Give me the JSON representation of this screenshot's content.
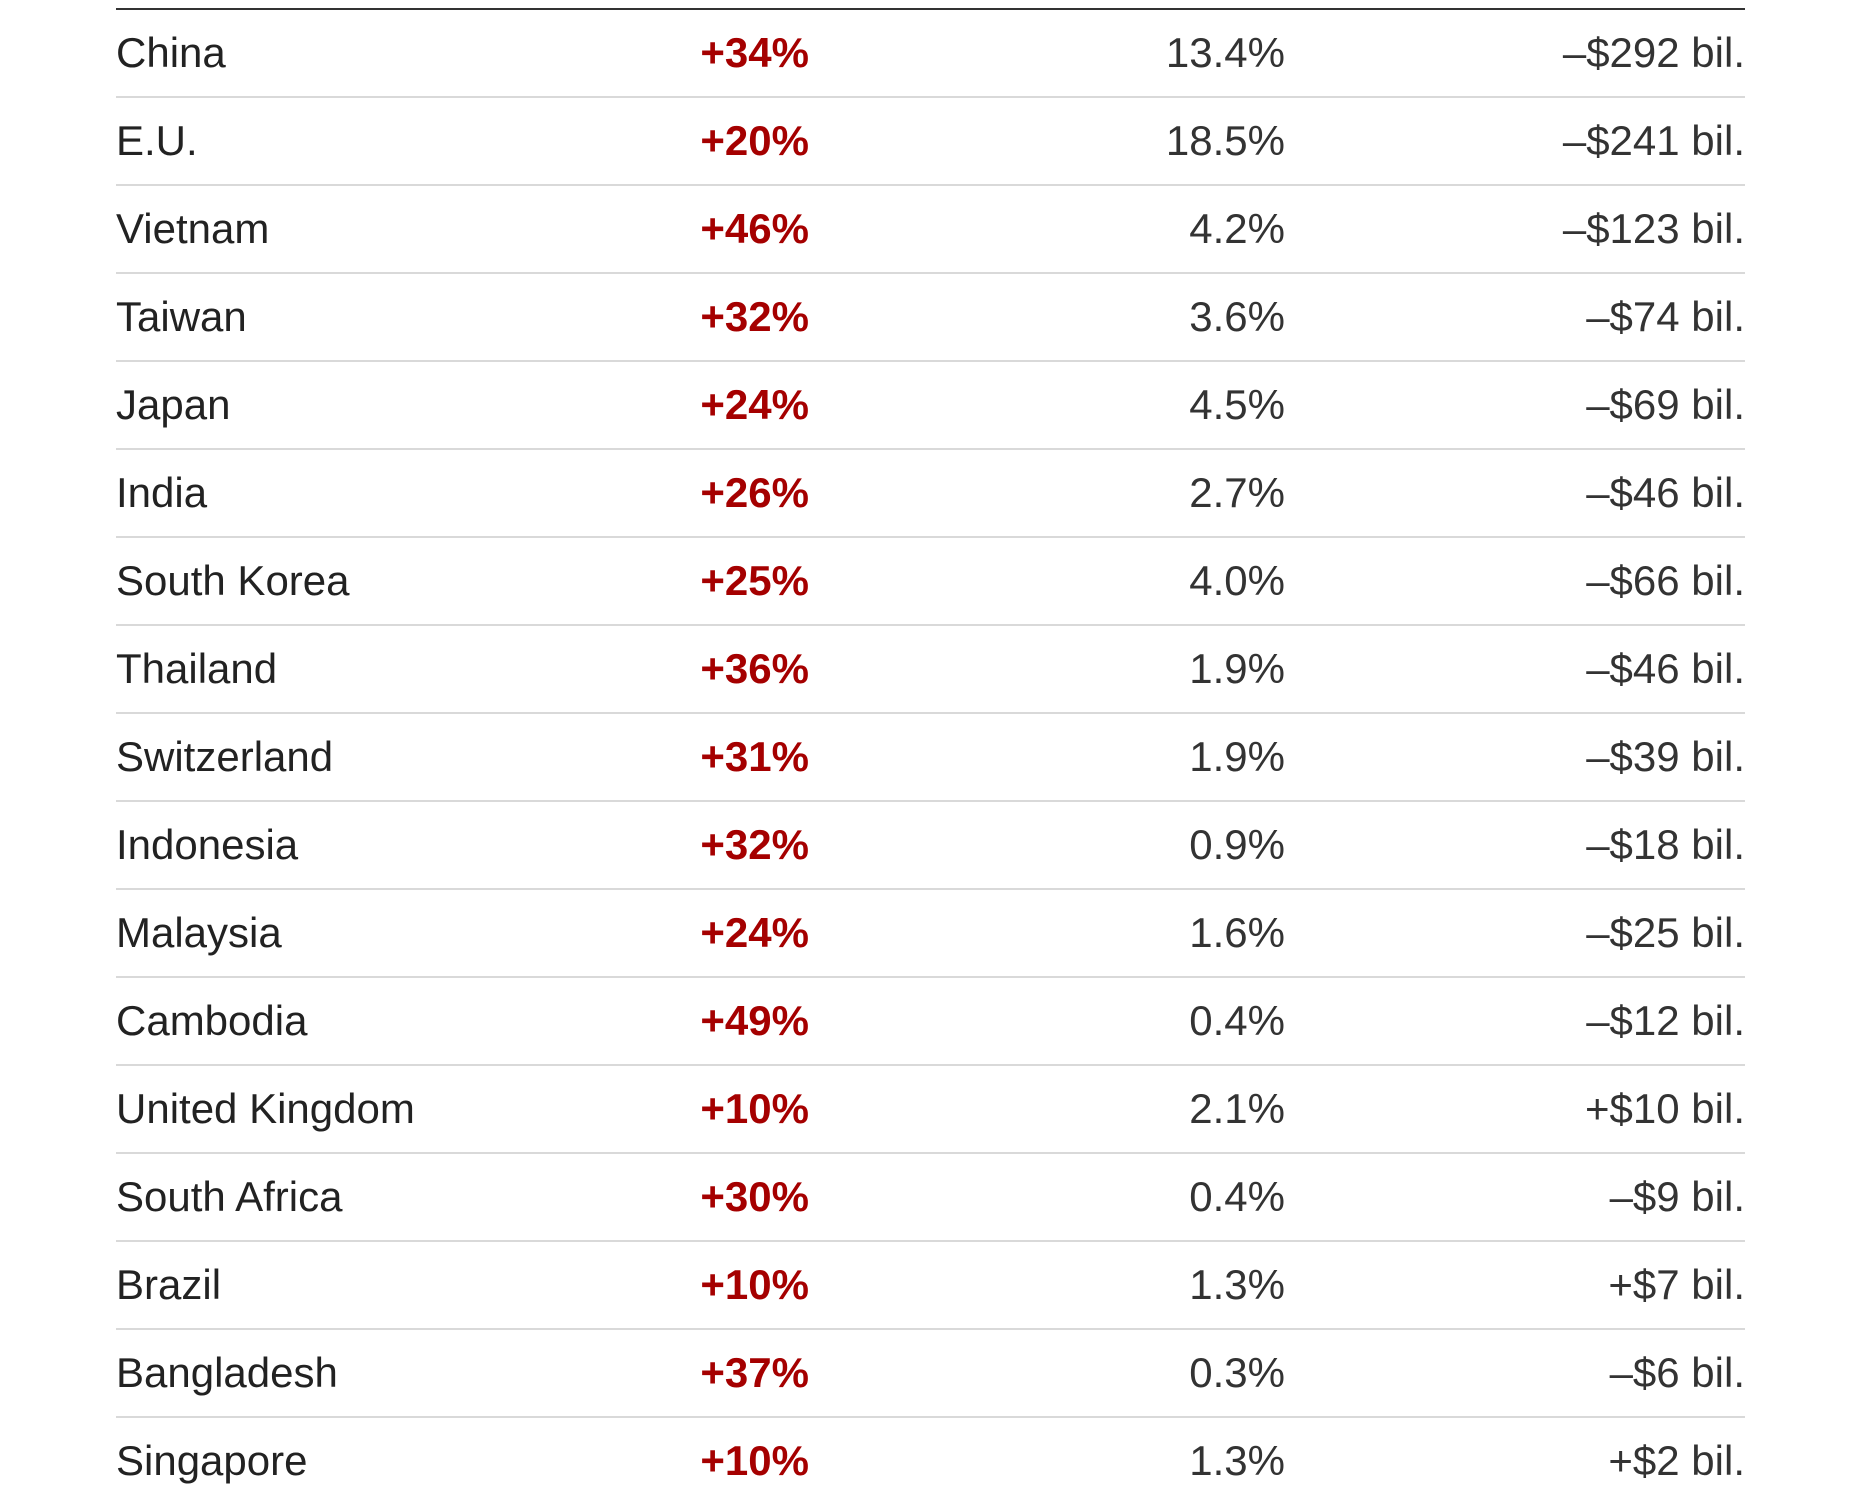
{
  "chart_data": {
    "type": "table",
    "rows": [
      {
        "country": "China",
        "tariff": "+34%",
        "share": "13.4%",
        "balance": "–$292 bil."
      },
      {
        "country": "E.U.",
        "tariff": "+20%",
        "share": "18.5%",
        "balance": "–$241 bil."
      },
      {
        "country": "Vietnam",
        "tariff": "+46%",
        "share": "4.2%",
        "balance": "–$123 bil."
      },
      {
        "country": "Taiwan",
        "tariff": "+32%",
        "share": "3.6%",
        "balance": "–$74 bil."
      },
      {
        "country": "Japan",
        "tariff": "+24%",
        "share": "4.5%",
        "balance": "–$69 bil."
      },
      {
        "country": "India",
        "tariff": "+26%",
        "share": "2.7%",
        "balance": "–$46 bil."
      },
      {
        "country": "South Korea",
        "tariff": "+25%",
        "share": "4.0%",
        "balance": "–$66 bil."
      },
      {
        "country": "Thailand",
        "tariff": "+36%",
        "share": "1.9%",
        "balance": "–$46 bil."
      },
      {
        "country": "Switzerland",
        "tariff": "+31%",
        "share": "1.9%",
        "balance": "–$39 bil."
      },
      {
        "country": "Indonesia",
        "tariff": "+32%",
        "share": "0.9%",
        "balance": "–$18 bil."
      },
      {
        "country": "Malaysia",
        "tariff": "+24%",
        "share": "1.6%",
        "balance": "–$25 bil."
      },
      {
        "country": "Cambodia",
        "tariff": "+49%",
        "share": "0.4%",
        "balance": "–$12 bil."
      },
      {
        "country": "United Kingdom",
        "tariff": "+10%",
        "share": "2.1%",
        "balance": "+$10 bil."
      },
      {
        "country": "South Africa",
        "tariff": "+30%",
        "share": "0.4%",
        "balance": "–$9 bil."
      },
      {
        "country": "Brazil",
        "tariff": "+10%",
        "share": "1.3%",
        "balance": "+$7 bil."
      },
      {
        "country": "Bangladesh",
        "tariff": "+37%",
        "share": "0.3%",
        "balance": "–$6 bil."
      },
      {
        "country": "Singapore",
        "tariff": "+10%",
        "share": "1.3%",
        "balance": "+$2 bil."
      }
    ]
  },
  "colors": {
    "tariff_text": "#a50000",
    "body_text": "#333333",
    "row_divider": "#d9d9d9",
    "top_rule": "#333333"
  }
}
